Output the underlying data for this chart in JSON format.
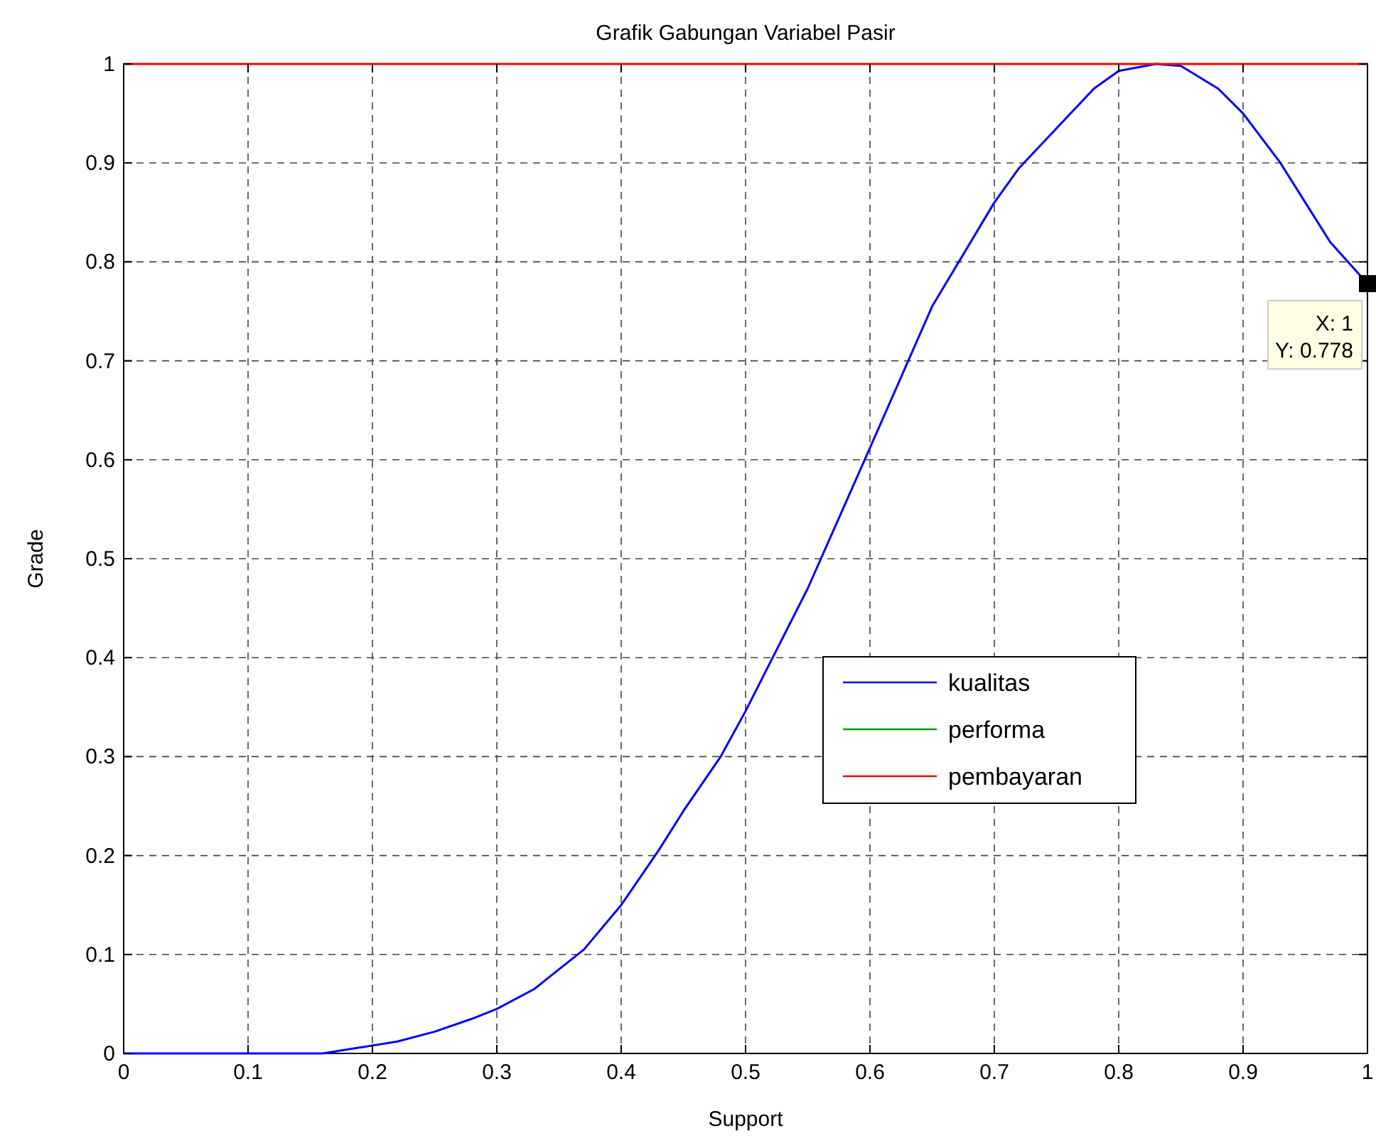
{
  "chart_data": {
    "type": "line",
    "title": "Grafik Gabungan Variabel Pasir",
    "xlabel": "Support",
    "ylabel": "Grade",
    "xlim": [
      0,
      1
    ],
    "ylim": [
      0,
      1
    ],
    "xticks": [
      0,
      0.1,
      0.2,
      0.3,
      0.4,
      0.5,
      0.6,
      0.7,
      0.8,
      0.9,
      1
    ],
    "yticks": [
      0,
      0.1,
      0.2,
      0.3,
      0.4,
      0.5,
      0.6,
      0.7,
      0.8,
      0.9,
      1
    ],
    "grid": true,
    "legend": "bottom right",
    "line_style": "solid",
    "series": [
      {
        "name": "kualitas",
        "color": "#0000ff",
        "x": [
          0,
          0.1,
          0.16,
          0.2,
          0.22,
          0.25,
          0.28,
          0.3,
          0.33,
          0.35,
          0.37,
          0.4,
          0.43,
          0.45,
          0.48,
          0.5,
          0.55,
          0.6,
          0.65,
          0.7,
          0.72,
          0.75,
          0.78,
          0.8,
          0.83,
          0.85,
          0.88,
          0.9,
          0.93,
          0.95,
          0.97,
          1
        ],
        "values": [
          0,
          0,
          0,
          0.008,
          0.012,
          0.022,
          0.035,
          0.045,
          0.065,
          0.085,
          0.105,
          0.15,
          0.205,
          0.245,
          0.3,
          0.346,
          0.47,
          0.612,
          0.755,
          0.86,
          0.895,
          0.935,
          0.975,
          0.993,
          1,
          0.998,
          0.975,
          0.95,
          0.9,
          0.86,
          0.82,
          0.778
        ]
      },
      {
        "name": "performa",
        "color": "#00a000"
      },
      {
        "name": "pembayaran",
        "color": "#ff0000",
        "x": [
          0,
          1
        ],
        "values": [
          1,
          1
        ]
      }
    ],
    "annotations": [
      {
        "text": "X: 1\nY: 0.778",
        "x": 1,
        "y": 0.778
      }
    ]
  }
}
